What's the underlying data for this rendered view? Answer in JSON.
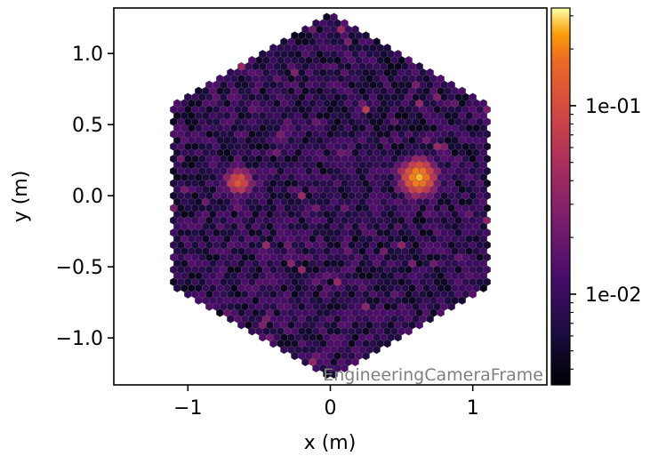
{
  "chart_data": {
    "type": "heatmap",
    "subtype": "hexagonal camera image",
    "title": "",
    "xlabel": "x  (m)",
    "ylabel": "y  (m)",
    "xlim": [
      -1.52,
      1.52
    ],
    "ylim": [
      -1.33,
      1.32
    ],
    "x_ticks": [
      {
        "value": -1,
        "label": "−1"
      },
      {
        "value": 0,
        "label": "0"
      },
      {
        "value": 1,
        "label": "1"
      }
    ],
    "y_ticks": [
      {
        "value": 1.0,
        "label": "1.0"
      },
      {
        "value": 0.5,
        "label": "0.5"
      },
      {
        "value": 0.0,
        "label": "0.0"
      },
      {
        "value": -0.5,
        "label": "−0.5"
      },
      {
        "value": -1.0,
        "label": "−1.0"
      }
    ],
    "annotation": "EngineeringCameraFrame",
    "colormap": "inferno",
    "colorbar": {
      "scale": "log",
      "vmin": 0.0033,
      "vmax": 0.33,
      "ticks": [
        {
          "value": 0.1,
          "label": "1e-01"
        },
        {
          "value": 0.01,
          "label": "1e-02"
        }
      ]
    },
    "camera": {
      "shape": "hexagon",
      "flat_to_flat_radius": 1.1,
      "pixel_pitch": 0.05,
      "background_level": 0.008
    },
    "hotspots": [
      {
        "x": 0.62,
        "y": 0.13,
        "peak": 0.25,
        "sigma": 0.06
      },
      {
        "x": -0.64,
        "y": 0.1,
        "peak": 0.12,
        "sigma": 0.045
      },
      {
        "x": 0.24,
        "y": 0.61,
        "peak": 0.05,
        "sigma": 0.02
      },
      {
        "x": -0.12,
        "y": -1.15,
        "peak": 0.04,
        "sigma": 0.02
      },
      {
        "x": -0.44,
        "y": -0.85,
        "peak": 0.025,
        "sigma": 0.02
      }
    ],
    "grid": false
  }
}
